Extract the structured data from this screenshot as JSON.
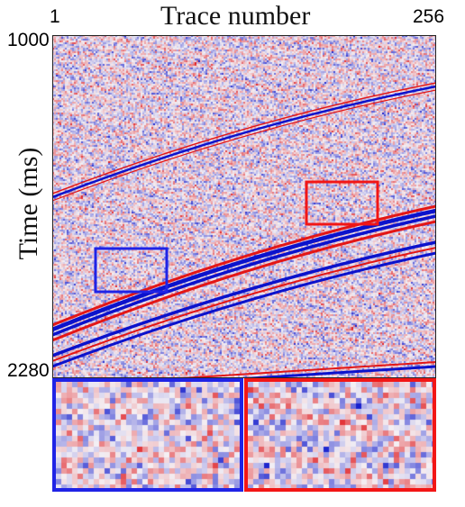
{
  "figure": {
    "xlabel": "Trace number",
    "ylabel": "Time (ms)",
    "x_ticks": [
      "1",
      "256"
    ],
    "y_ticks": [
      "1000",
      "2280"
    ]
  },
  "colors": {
    "negative": "#0b12cc",
    "positive": "#e31616",
    "neutral": "#f4f0f4",
    "box_blue": "#1f23e6",
    "box_red": "#f21616"
  },
  "zoom_boxes": [
    {
      "name": "blue-box",
      "color": "#1f23e6"
    },
    {
      "name": "red-box",
      "color": "#f21616"
    }
  ]
}
